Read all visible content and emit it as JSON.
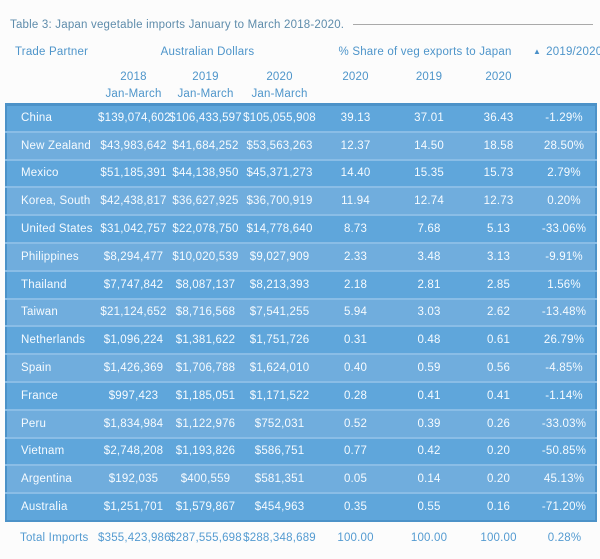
{
  "title": "Table 3: Japan vegetable imports January to March 2018-2020.",
  "table": {
    "group_headers": {
      "trade_partner": "Trade Partner",
      "australian_dollars": "Australian Dollars",
      "share": "% Share of veg exports to Japan",
      "change": "2019/2020",
      "sort_icon": "triangle-up",
      "sort_glyph": "▲"
    },
    "sub_headers": {
      "aud_cols": [
        {
          "year": "2018",
          "period": "Jan-March"
        },
        {
          "year": "2019",
          "period": "Jan-March"
        },
        {
          "year": "2020",
          "period": "Jan-March"
        }
      ],
      "share_cols": [
        "2020",
        "2019",
        "2020"
      ]
    },
    "rows": [
      [
        "China",
        "$139,074,602",
        "$106,433,597",
        "$105,055,908",
        "39.13",
        "37.01",
        "36.43",
        "-1.29%"
      ],
      [
        "New Zealand",
        "$43,983,642",
        "$41,684,252",
        "$53,563,263",
        "12.37",
        "14.50",
        "18.58",
        "28.50%"
      ],
      [
        "Mexico",
        "$51,185,391",
        "$44,138,950",
        "$45,371,273",
        "14.40",
        "15.35",
        "15.73",
        "2.79%"
      ],
      [
        "Korea, South",
        "$42,438,817",
        "$36,627,925",
        "$36,700,919",
        "11.94",
        "12.74",
        "12.73",
        "0.20%"
      ],
      [
        "United States",
        "$31,042,757",
        "$22,078,750",
        "$14,778,640",
        "8.73",
        "7.68",
        "5.13",
        "-33.06%"
      ],
      [
        "Philippines",
        "$8,294,477",
        "$10,020,539",
        "$9,027,909",
        "2.33",
        "3.48",
        "3.13",
        "-9.91%"
      ],
      [
        "Thailand",
        "$7,747,842",
        "$8,087,137",
        "$8,213,393",
        "2.18",
        "2.81",
        "2.85",
        "1.56%"
      ],
      [
        "Taiwan",
        "$21,124,652",
        "$8,716,568",
        "$7,541,255",
        "5.94",
        "3.03",
        "2.62",
        "-13.48%"
      ],
      [
        "Netherlands",
        "$1,096,224",
        "$1,381,622",
        "$1,751,726",
        "0.31",
        "0.48",
        "0.61",
        "26.79%"
      ],
      [
        "Spain",
        "$1,426,369",
        "$1,706,788",
        "$1,624,010",
        "0.40",
        "0.59",
        "0.56",
        "-4.85%"
      ],
      [
        "France",
        "$997,423",
        "$1,185,051",
        "$1,171,522",
        "0.28",
        "0.41",
        "0.41",
        "-1.14%"
      ],
      [
        "Peru",
        "$1,834,984",
        "$1,122,976",
        "$752,031",
        "0.52",
        "0.39",
        "0.26",
        "-33.03%"
      ],
      [
        "Vietnam",
        "$2,748,208",
        "$1,193,826",
        "$586,751",
        "0.77",
        "0.42",
        "0.20",
        "-50.85%"
      ],
      [
        "Argentina",
        "$192,035",
        "$400,559",
        "$581,351",
        "0.05",
        "0.14",
        "0.20",
        "45.13%"
      ],
      [
        "Australia",
        "$1,251,701",
        "$1,579,867",
        "$454,963",
        "0.35",
        "0.55",
        "0.16",
        "-71.20%"
      ]
    ],
    "total_row": {
      "label": "Total Imports",
      "aud_2018": "$355,423,986",
      "aud_2019": "$287,555,698",
      "aud_2020": "$288,348,689",
      "share_1": "100.00",
      "share_2": "100.00",
      "share_3": "100.00",
      "change": "0.28%"
    }
  },
  "colors": {
    "header_text": "#4e95ca",
    "title_text": "#5e8cab",
    "row_odd_bg": "#5fa6db",
    "row_even_bg": "#70addd",
    "row_separator": "#8abde6",
    "table_outline": "#4c92c8",
    "row_text": "#f6fbff",
    "total_text": "#549bd1",
    "rule_gray": "#a9a9a9"
  }
}
